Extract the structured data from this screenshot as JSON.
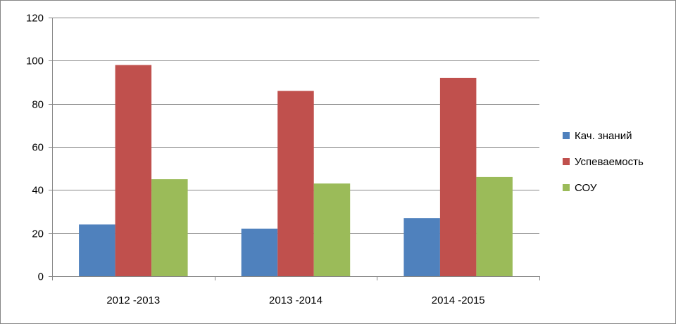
{
  "chart_data": {
    "type": "bar",
    "title": "",
    "xlabel": "",
    "ylabel": "",
    "categories": [
      "2012 -2013",
      "2013 -2014",
      "2014 -2015"
    ],
    "series": [
      {
        "name": "Кач. знаний",
        "color": "#4F81BD",
        "values": [
          24,
          22,
          27
        ]
      },
      {
        "name": "Успеваемость",
        "color": "#C0504D",
        "values": [
          98,
          86,
          92
        ]
      },
      {
        "name": "СОУ",
        "color": "#9BBB59",
        "values": [
          45,
          43,
          46
        ]
      }
    ],
    "ylim": [
      0,
      120
    ],
    "yticks": [
      0,
      20,
      40,
      60,
      80,
      100,
      120
    ],
    "grid": true,
    "legend_position": "right"
  }
}
